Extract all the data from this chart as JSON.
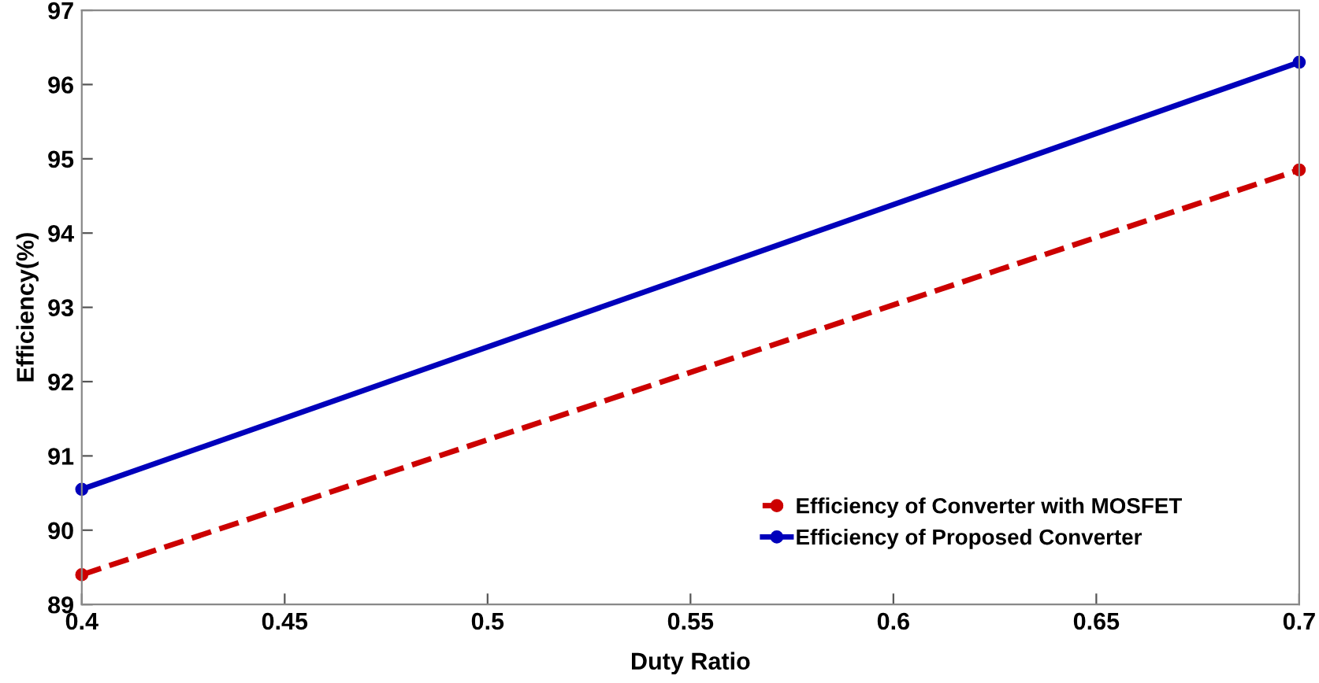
{
  "chart_data": {
    "type": "line",
    "xlabel": "Duty Ratio",
    "ylabel": "Efficiency(%)",
    "x": [
      0.4,
      0.7
    ],
    "series": [
      {
        "name": "Efficiency of Converter with MOSFET",
        "color": "#cc0000",
        "values": [
          89.4,
          94.85
        ],
        "line_style": "dashed"
      },
      {
        "name": "Efficiency of Proposed Converter",
        "color": "#0000bb",
        "values": [
          90.55,
          96.3
        ],
        "line_style": "solid"
      }
    ],
    "xlim": [
      0.4,
      0.7
    ],
    "xticks": [
      0.4,
      0.45,
      0.5,
      0.55,
      0.6,
      0.65,
      0.7
    ],
    "ylim": [
      89,
      97
    ],
    "yticks": [
      89,
      90,
      91,
      92,
      93,
      94,
      95,
      96,
      97
    ],
    "grid": false,
    "legend": "bottom right",
    "marker": "circle"
  }
}
